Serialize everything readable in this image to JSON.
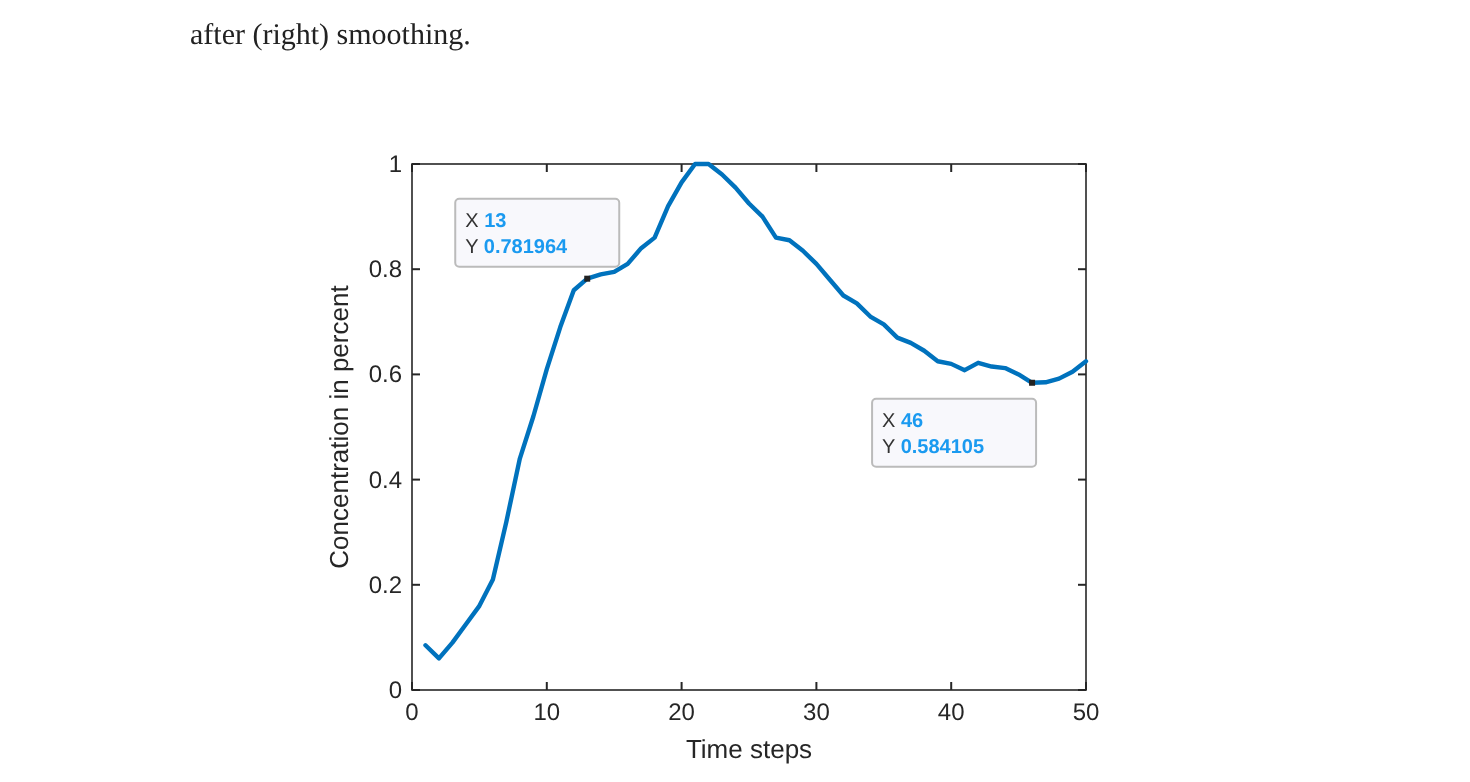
{
  "chart_data": {
    "type": "line",
    "xlabel": "Time steps",
    "ylabel": "Concentration in percent",
    "x": [
      1,
      2,
      3,
      4,
      5,
      6,
      7,
      8,
      9,
      10,
      11,
      12,
      13,
      14,
      15,
      16,
      17,
      18,
      19,
      20,
      21,
      22,
      23,
      24,
      25,
      26,
      27,
      28,
      29,
      30,
      31,
      32,
      33,
      34,
      35,
      36,
      37,
      38,
      39,
      40,
      41,
      42,
      43,
      44,
      45,
      46,
      47,
      48,
      49,
      50
    ],
    "series": [
      {
        "color": "#0072bd",
        "values": [
          0.085,
          0.06,
          0.09,
          0.125,
          0.16,
          0.21,
          0.32,
          0.44,
          0.52,
          0.61,
          0.69,
          0.76,
          0.781964,
          0.79,
          0.795,
          0.81,
          0.84,
          0.86,
          0.92,
          0.965,
          1.0,
          1.0,
          0.98,
          0.955,
          0.925,
          0.9,
          0.86,
          0.855,
          0.835,
          0.81,
          0.78,
          0.75,
          0.735,
          0.71,
          0.695,
          0.67,
          0.66,
          0.645,
          0.625,
          0.62,
          0.608,
          0.622,
          0.615,
          0.612,
          0.6,
          0.584105,
          0.585,
          0.592,
          0.605,
          0.625
        ]
      }
    ],
    "xlim": [
      0,
      50
    ],
    "xticks": [
      0,
      10,
      20,
      30,
      40,
      50
    ],
    "ylim": [
      0,
      1
    ],
    "yticks": [
      0,
      0.2,
      0.4,
      0.6,
      0.8,
      1
    ],
    "line_style": "solid",
    "marker": "none",
    "annotations": [
      "after (right) smoothing.",
      {
        "text": "X 13\nY 0.781964",
        "x": 13,
        "y": 0.781964
      },
      {
        "text": "X 46\nY 0.584105",
        "x": 46,
        "y": 0.584105
      }
    ]
  }
}
